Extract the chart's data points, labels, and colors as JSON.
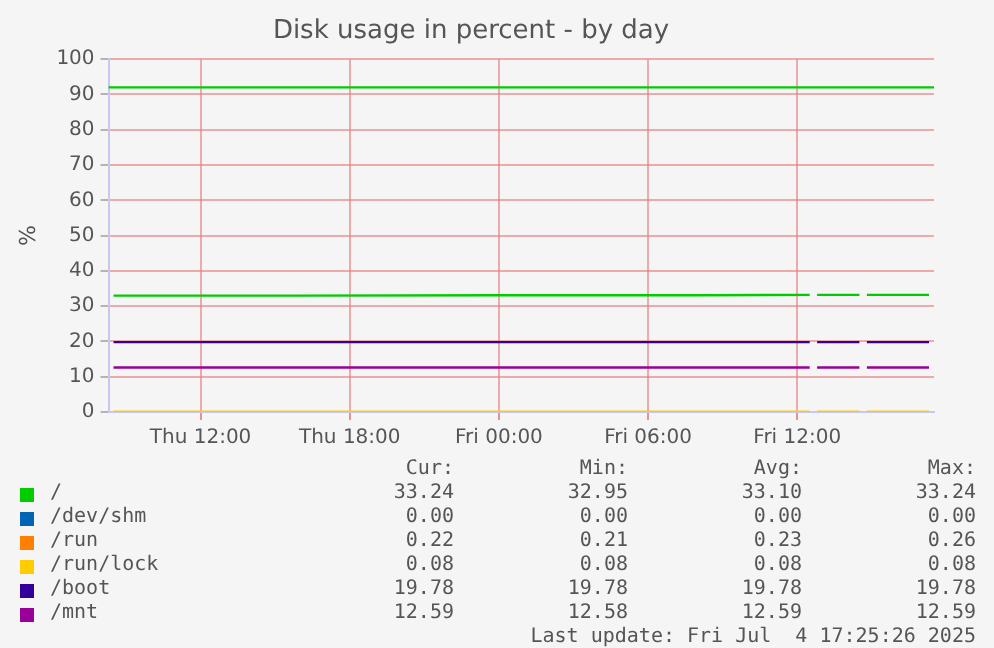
{
  "chart_data": {
    "type": "line",
    "title": "Disk usage in percent - by day",
    "ylabel": "%",
    "x": [
      "2025-07-03T08:30",
      "2025-07-03T16:00",
      "2025-07-04T00:00",
      "2025-07-04T08:00",
      "2025-07-04T12:30",
      "2025-07-04T12:36",
      "2025-07-04T12:48",
      "2025-07-04T14:30",
      "2025-07-04T14:36",
      "2025-07-04T14:48",
      "2025-07-04T17:18"
    ],
    "xlim": [
      "2025-07-03T08:18",
      "2025-07-04T17:30"
    ],
    "xticks": [
      {
        "value": "2025-07-03T12:00",
        "label": "Thu 12:00"
      },
      {
        "value": "2025-07-03T18:00",
        "label": "Thu 18:00"
      },
      {
        "value": "2025-07-04T00:00",
        "label": "Fri 00:00"
      },
      {
        "value": "2025-07-04T06:00",
        "label": "Fri 06:00"
      },
      {
        "value": "2025-07-04T12:00",
        "label": "Fri 12:00"
      }
    ],
    "ylim": [
      0,
      100
    ],
    "yticks": [
      0,
      10,
      20,
      30,
      40,
      50,
      60,
      70,
      80,
      90,
      100
    ],
    "series": [
      {
        "name": "/",
        "color": "#00cc00",
        "values": [
          33.0,
          33.0,
          33.1,
          33.1,
          33.2,
          null,
          33.2,
          33.2,
          null,
          33.2,
          33.2
        ]
      },
      {
        "name": "/dev/shm",
        "color": "#0066b3",
        "values": [
          null,
          null,
          null,
          null,
          null,
          null,
          null,
          null,
          null,
          null,
          null
        ]
      },
      {
        "name": "/run",
        "color": "#ff8000",
        "values": [
          null,
          null,
          null,
          null,
          null,
          null,
          null,
          null,
          null,
          null,
          null
        ]
      },
      {
        "name": "/run/lock",
        "color": "#ffcc00",
        "values": [
          0.1,
          0.1,
          0.1,
          0.1,
          0.1,
          null,
          0.1,
          0.1,
          null,
          0.1,
          0.1
        ]
      },
      {
        "name": "/boot",
        "color": "#330099",
        "values": [
          19.8,
          19.8,
          19.8,
          19.8,
          19.8,
          null,
          19.8,
          19.8,
          null,
          19.8,
          19.8
        ]
      },
      {
        "name": "/mnt",
        "color": "#990099",
        "values": [
          12.6,
          12.6,
          12.6,
          12.6,
          12.6,
          null,
          12.6,
          12.6,
          null,
          12.6,
          12.6
        ]
      }
    ],
    "ref_lines": [
      {
        "axis": "y",
        "value": 92,
        "color": "#00cc00"
      }
    ],
    "grid": true,
    "legend": "bottom",
    "marker": "none",
    "line_style": "solid",
    "annotations": [
      "Cur:",
      "Min:",
      "Avg:",
      "Max:",
      "33.24",
      "32.95",
      "33.10",
      "33.24",
      "0.00",
      "0.00",
      "0.00",
      "0.00",
      "0.22",
      "0.21",
      "0.23",
      "0.26",
      "0.08",
      "0.08",
      "0.08",
      "0.08",
      "19.78",
      "19.78",
      "19.78",
      "19.78",
      "12.59",
      "12.58",
      "12.59",
      "12.59",
      "Last update: Fri Jul  4 17:25:26 2025"
    ]
  }
}
